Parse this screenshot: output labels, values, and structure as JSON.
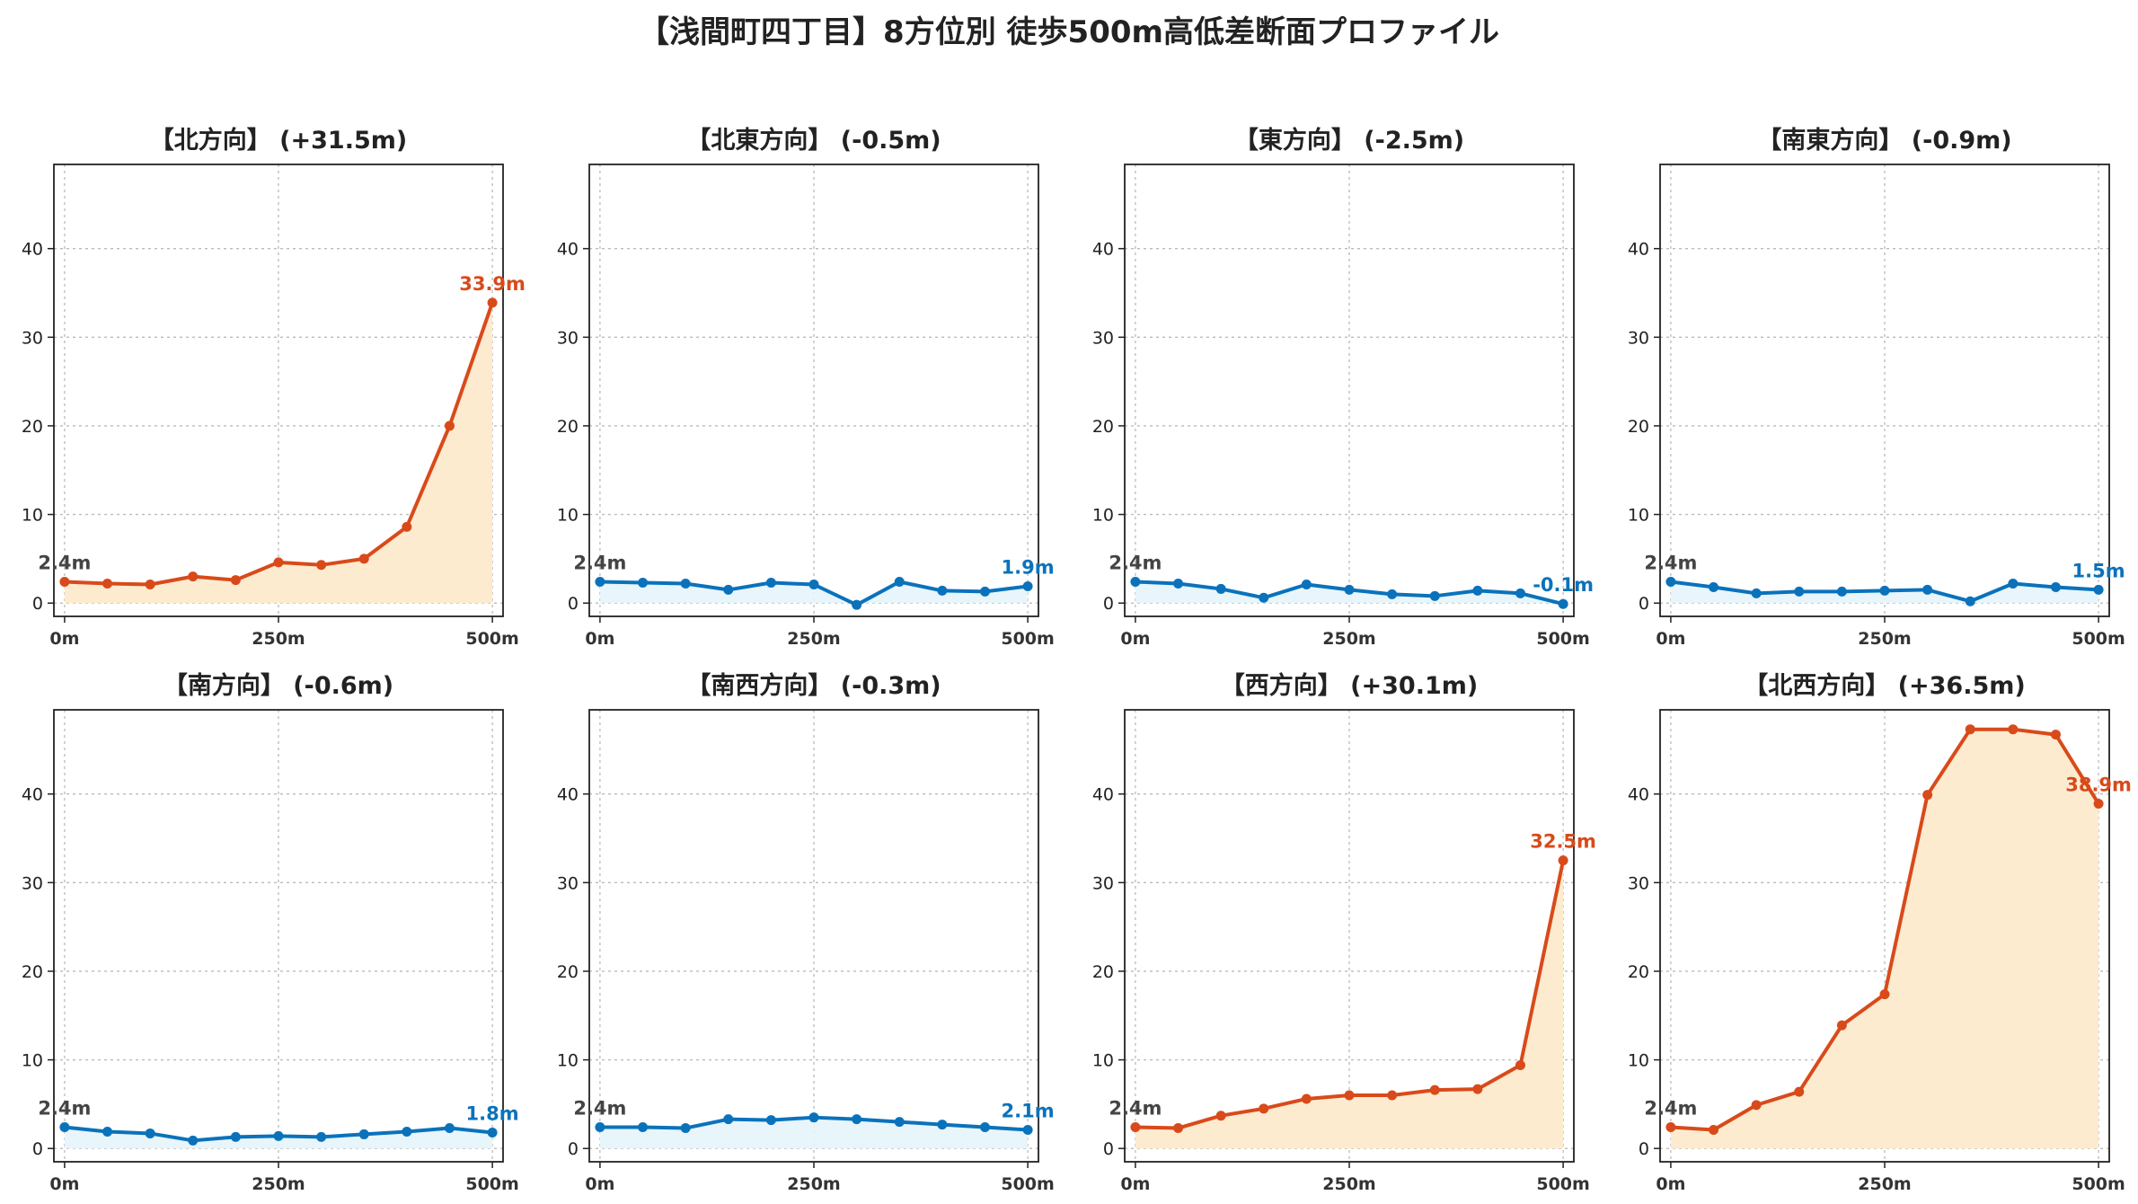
{
  "title": "【浅間町四丁目】8方位別 徒歩500m高低差断面プロファイル",
  "colors": {
    "up_line": "#d94a1a",
    "up_fill": "#fdebd0",
    "down_line": "#0a72bb",
    "down_fill": "#e6f4fb",
    "start_label": "#444444"
  },
  "chart_data": [
    {
      "type": "area",
      "title": "【北方向】 (+31.5m)",
      "trend": "up",
      "x": [
        0,
        50,
        100,
        150,
        200,
        250,
        300,
        350,
        400,
        450,
        500
      ],
      "values": [
        2.4,
        2.2,
        2.1,
        3.0,
        2.6,
        4.6,
        4.3,
        5.0,
        8.6,
        20.0,
        33.9
      ],
      "xticks": [
        "0m",
        "250m",
        "500m"
      ],
      "yticks": [
        0,
        10,
        20,
        30,
        40
      ],
      "ylim": [
        -1.5,
        49.5
      ],
      "start_label": "2.4m",
      "end_label": "33.9m"
    },
    {
      "type": "area",
      "title": "【北東方向】 (-0.5m)",
      "trend": "down",
      "x": [
        0,
        50,
        100,
        150,
        200,
        250,
        300,
        350,
        400,
        450,
        500
      ],
      "values": [
        2.4,
        2.3,
        2.2,
        1.5,
        2.3,
        2.1,
        -0.2,
        2.4,
        1.4,
        1.3,
        1.9
      ],
      "xticks": [
        "0m",
        "250m",
        "500m"
      ],
      "yticks": [
        0,
        10,
        20,
        30,
        40
      ],
      "ylim": [
        -1.5,
        49.5
      ],
      "start_label": "2.4m",
      "end_label": "1.9m"
    },
    {
      "type": "area",
      "title": "【東方向】 (-2.5m)",
      "trend": "down",
      "x": [
        0,
        50,
        100,
        150,
        200,
        250,
        300,
        350,
        400,
        450,
        500
      ],
      "values": [
        2.4,
        2.2,
        1.6,
        0.6,
        2.1,
        1.5,
        1.0,
        0.8,
        1.4,
        1.1,
        -0.1
      ],
      "xticks": [
        "0m",
        "250m",
        "500m"
      ],
      "yticks": [
        0,
        10,
        20,
        30,
        40
      ],
      "ylim": [
        -1.5,
        49.5
      ],
      "start_label": "2.4m",
      "end_label": "-0.1m"
    },
    {
      "type": "area",
      "title": "【南東方向】 (-0.9m)",
      "trend": "down",
      "x": [
        0,
        50,
        100,
        150,
        200,
        250,
        300,
        350,
        400,
        450,
        500
      ],
      "values": [
        2.4,
        1.8,
        1.1,
        1.3,
        1.3,
        1.4,
        1.5,
        0.2,
        2.2,
        1.8,
        1.5
      ],
      "xticks": [
        "0m",
        "250m",
        "500m"
      ],
      "yticks": [
        0,
        10,
        20,
        30,
        40
      ],
      "ylim": [
        -1.5,
        49.5
      ],
      "start_label": "2.4m",
      "end_label": "1.5m"
    },
    {
      "type": "area",
      "title": "【南方向】 (-0.6m)",
      "trend": "down",
      "x": [
        0,
        50,
        100,
        150,
        200,
        250,
        300,
        350,
        400,
        450,
        500
      ],
      "values": [
        2.4,
        1.9,
        1.7,
        0.9,
        1.3,
        1.4,
        1.3,
        1.6,
        1.9,
        2.3,
        1.8
      ],
      "xticks": [
        "0m",
        "250m",
        "500m"
      ],
      "yticks": [
        0,
        10,
        20,
        30,
        40
      ],
      "ylim": [
        -1.5,
        49.5
      ],
      "start_label": "2.4m",
      "end_label": "1.8m"
    },
    {
      "type": "area",
      "title": "【南西方向】 (-0.3m)",
      "trend": "down",
      "x": [
        0,
        50,
        100,
        150,
        200,
        250,
        300,
        350,
        400,
        450,
        500
      ],
      "values": [
        2.4,
        2.4,
        2.3,
        3.3,
        3.2,
        3.5,
        3.3,
        3.0,
        2.7,
        2.4,
        2.1
      ],
      "xticks": [
        "0m",
        "250m",
        "500m"
      ],
      "yticks": [
        0,
        10,
        20,
        30,
        40
      ],
      "ylim": [
        -1.5,
        49.5
      ],
      "start_label": "2.4m",
      "end_label": "2.1m"
    },
    {
      "type": "area",
      "title": "【西方向】 (+30.1m)",
      "trend": "up",
      "x": [
        0,
        50,
        100,
        150,
        200,
        250,
        300,
        350,
        400,
        450,
        500
      ],
      "values": [
        2.4,
        2.3,
        3.7,
        4.5,
        5.6,
        6.0,
        6.0,
        6.6,
        6.7,
        9.4,
        32.5
      ],
      "xticks": [
        "0m",
        "250m",
        "500m"
      ],
      "yticks": [
        0,
        10,
        20,
        30,
        40
      ],
      "ylim": [
        -1.5,
        49.5
      ],
      "start_label": "2.4m",
      "end_label": "32.5m"
    },
    {
      "type": "area",
      "title": "【北西方向】 (+36.5m)",
      "trend": "up",
      "x": [
        0,
        50,
        100,
        150,
        200,
        250,
        300,
        350,
        400,
        450,
        500
      ],
      "values": [
        2.4,
        2.1,
        4.9,
        6.4,
        13.9,
        17.4,
        39.9,
        47.3,
        47.3,
        46.7,
        38.9
      ],
      "xticks": [
        "0m",
        "250m",
        "500m"
      ],
      "yticks": [
        0,
        10,
        20,
        30,
        40
      ],
      "ylim": [
        -1.5,
        49.5
      ],
      "start_label": "2.4m",
      "end_label": "38.9m"
    }
  ]
}
